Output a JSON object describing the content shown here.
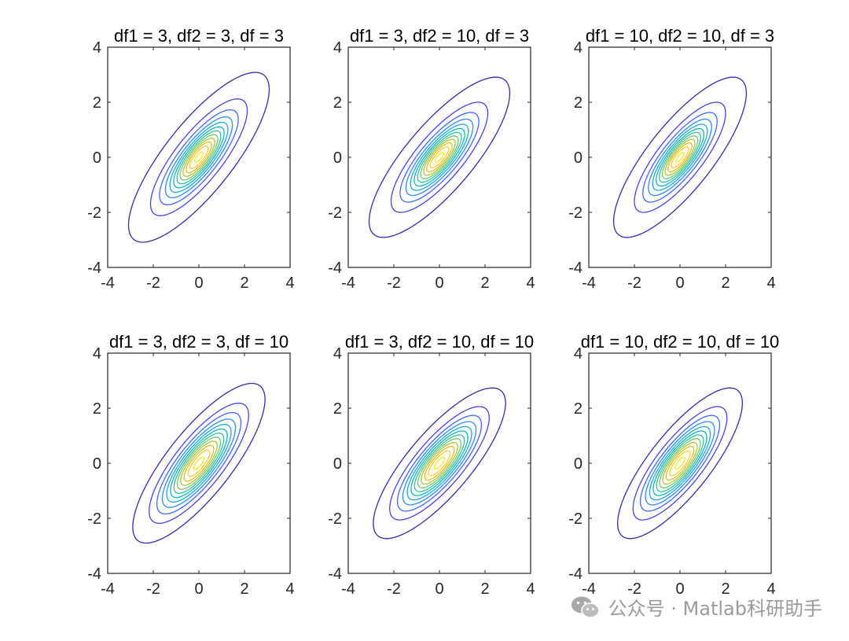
{
  "chart_data": [
    {
      "type": "contour",
      "title": "df1 = 3, df2 = 3, df = 3",
      "df1": 3,
      "df2": 3,
      "df": 3,
      "xlim": [
        -4,
        4
      ],
      "ylim": [
        -4,
        4
      ],
      "xticks": [
        "-4",
        "-2",
        "0",
        "2",
        "4"
      ],
      "yticks": [
        "-4",
        "-2",
        "0",
        "2",
        "4"
      ],
      "grid": false,
      "colormap": "parula"
    },
    {
      "type": "contour",
      "title": "df1 = 3, df2 = 10, df = 3",
      "df1": 3,
      "df2": 10,
      "df": 3,
      "xlim": [
        -4,
        4
      ],
      "ylim": [
        -4,
        4
      ],
      "xticks": [
        "-4",
        "-2",
        "0",
        "2",
        "4"
      ],
      "yticks": [
        "-4",
        "-2",
        "0",
        "2",
        "4"
      ],
      "grid": false,
      "colormap": "parula"
    },
    {
      "type": "contour",
      "title": "df1 = 10, df2 = 10, df = 3",
      "df1": 10,
      "df2": 10,
      "df": 3,
      "xlim": [
        -4,
        4
      ],
      "ylim": [
        -4,
        4
      ],
      "xticks": [
        "-4",
        "-2",
        "0",
        "2",
        "4"
      ],
      "yticks": [
        "-4",
        "-2",
        "0",
        "2",
        "4"
      ],
      "grid": false,
      "colormap": "parula"
    },
    {
      "type": "contour",
      "title": "df1 = 3, df2 = 3, df = 10",
      "df1": 3,
      "df2": 3,
      "df": 10,
      "xlim": [
        -4,
        4
      ],
      "ylim": [
        -4,
        4
      ],
      "xticks": [
        "-4",
        "-2",
        "0",
        "2",
        "4"
      ],
      "yticks": [
        "-4",
        "-2",
        "0",
        "2",
        "4"
      ],
      "grid": false,
      "colormap": "parula"
    },
    {
      "type": "contour",
      "title": "df1 = 3, df2 = 10, df = 10",
      "df1": 3,
      "df2": 10,
      "df": 10,
      "xlim": [
        -4,
        4
      ],
      "ylim": [
        -4,
        4
      ],
      "xticks": [
        "-4",
        "-2",
        "0",
        "2",
        "4"
      ],
      "yticks": [
        "-4",
        "-2",
        "0",
        "2",
        "4"
      ],
      "grid": false,
      "colormap": "parula"
    },
    {
      "type": "contour",
      "title": "df1 = 10, df2 = 10, df = 10",
      "df1": 10,
      "df2": 10,
      "df": 10,
      "xlim": [
        -4,
        4
      ],
      "ylim": [
        -4,
        4
      ],
      "xticks": [
        "-4",
        "-2",
        "0",
        "2",
        "4"
      ],
      "yticks": [
        "-4",
        "-2",
        "0",
        "2",
        "4"
      ],
      "grid": false,
      "colormap": "parula"
    }
  ],
  "contour_colors": [
    "#3e26a8",
    "#4743e0",
    "#3f68fe",
    "#2d8cf3",
    "#1fa8db",
    "#09b7c1",
    "#35c0a0",
    "#72c76c",
    "#aec439",
    "#e4bb27",
    "#fdcd37",
    "#f6ea1e"
  ],
  "watermark": {
    "icon": "wechat-icon",
    "text": "公众号 · Matlab科研助手"
  }
}
